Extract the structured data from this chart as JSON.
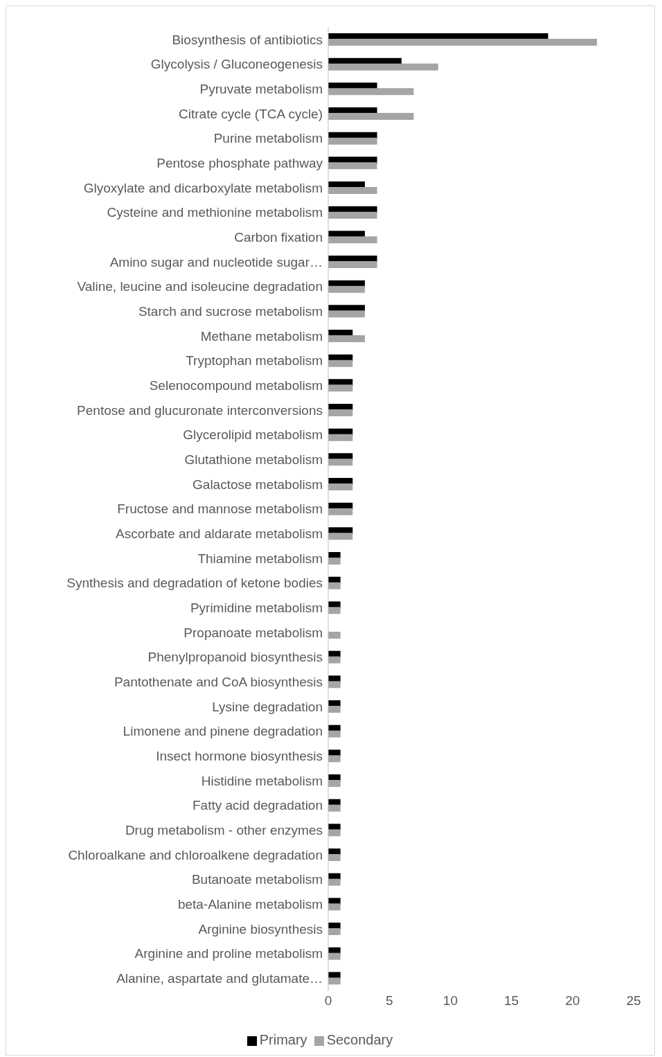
{
  "chart_data": {
    "type": "bar",
    "orientation": "horizontal",
    "categories": [
      "Biosynthesis of antibiotics",
      "Glycolysis / Gluconeogenesis",
      "Pyruvate metabolism",
      "Citrate cycle (TCA cycle)",
      "Purine metabolism",
      "Pentose phosphate pathway",
      "Glyoxylate and dicarboxylate metabolism",
      "Cysteine and methionine metabolism",
      "Carbon fixation",
      "Amino sugar and nucleotide sugar…",
      "Valine, leucine and isoleucine degradation",
      "Starch and sucrose metabolism",
      "Methane metabolism",
      "Tryptophan metabolism",
      "Selenocompound metabolism",
      "Pentose and glucuronate interconversions",
      "Glycerolipid metabolism",
      "Glutathione metabolism",
      "Galactose metabolism",
      "Fructose and mannose metabolism",
      "Ascorbate and aldarate metabolism",
      "Thiamine metabolism",
      "Synthesis and degradation of ketone bodies",
      "Pyrimidine metabolism",
      "Propanoate metabolism",
      "Phenylpropanoid biosynthesis",
      "Pantothenate and CoA biosynthesis",
      "Lysine degradation",
      "Limonene and pinene degradation",
      "Insect hormone biosynthesis",
      "Histidine metabolism",
      "Fatty acid degradation",
      "Drug metabolism - other enzymes",
      "Chloroalkane and chloroalkene degradation",
      "Butanoate metabolism",
      "beta-Alanine metabolism",
      "Arginine biosynthesis",
      "Arginine and proline metabolism",
      "Alanine, aspartate and glutamate…"
    ],
    "series": [
      {
        "name": "Primary",
        "color": "#000000",
        "values": [
          18,
          6,
          4,
          4,
          4,
          4,
          3,
          4,
          3,
          4,
          3,
          3,
          2,
          2,
          2,
          2,
          2,
          2,
          2,
          2,
          2,
          1,
          1,
          1,
          0,
          1,
          1,
          1,
          1,
          1,
          1,
          1,
          1,
          1,
          1,
          1,
          1,
          1,
          1
        ]
      },
      {
        "name": "Secondary",
        "color": "#a5a5a5",
        "values": [
          22,
          9,
          7,
          7,
          4,
          4,
          4,
          4,
          4,
          4,
          3,
          3,
          3,
          2,
          2,
          2,
          2,
          2,
          2,
          2,
          2,
          1,
          1,
          1,
          1,
          1,
          1,
          1,
          1,
          1,
          1,
          1,
          1,
          1,
          1,
          1,
          1,
          1,
          1
        ]
      }
    ],
    "xlim": [
      0,
      25
    ],
    "xticks": [
      0,
      5,
      10,
      15,
      20,
      25
    ],
    "grid": false,
    "legend": "bottom"
  }
}
